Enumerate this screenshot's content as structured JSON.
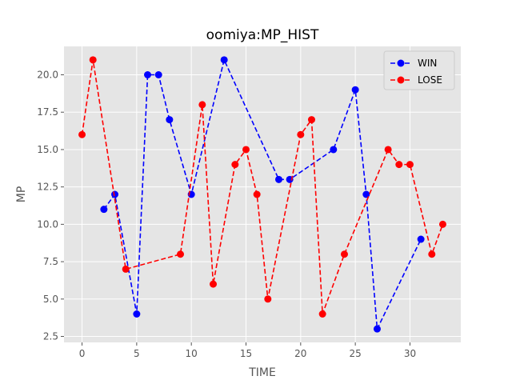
{
  "chart_data": {
    "type": "line",
    "title": "oomiya:MP_HIST",
    "xlabel": "TIME",
    "ylabel": "MP",
    "xlim": [
      -1.65,
      34.65
    ],
    "ylim": [
      2.1,
      21.9
    ],
    "xticks": [
      0,
      5,
      10,
      15,
      20,
      25,
      30
    ],
    "yticks": [
      2.5,
      5.0,
      7.5,
      10.0,
      12.5,
      15.0,
      17.5,
      20.0
    ],
    "ytick_labels": [
      "2.5",
      "5.0",
      "7.5",
      "10.0",
      "12.5",
      "15.0",
      "17.5",
      "20.0"
    ],
    "grid": true,
    "legend_position": "top-right",
    "series": [
      {
        "name": "WIN",
        "color": "#0000ff",
        "style": "dashed",
        "marker": "circle",
        "x": [
          2,
          3,
          5,
          6,
          7,
          8,
          10,
          13,
          18,
          19,
          23,
          25,
          26,
          27,
          31
        ],
        "y": [
          11,
          12,
          4,
          20,
          20,
          17,
          12,
          21,
          13,
          13,
          15,
          19,
          12,
          3,
          9
        ]
      },
      {
        "name": "LOSE",
        "color": "#ff0000",
        "style": "dashed",
        "marker": "circle",
        "x": [
          0,
          1,
          4,
          9,
          11,
          12,
          14,
          15,
          16,
          17,
          20,
          21,
          22,
          24,
          28,
          29,
          30,
          32,
          33
        ],
        "y": [
          16,
          21,
          7,
          8,
          18,
          6,
          14,
          15,
          12,
          5,
          16,
          17,
          4,
          8,
          15,
          14,
          14,
          8,
          10
        ]
      }
    ]
  }
}
